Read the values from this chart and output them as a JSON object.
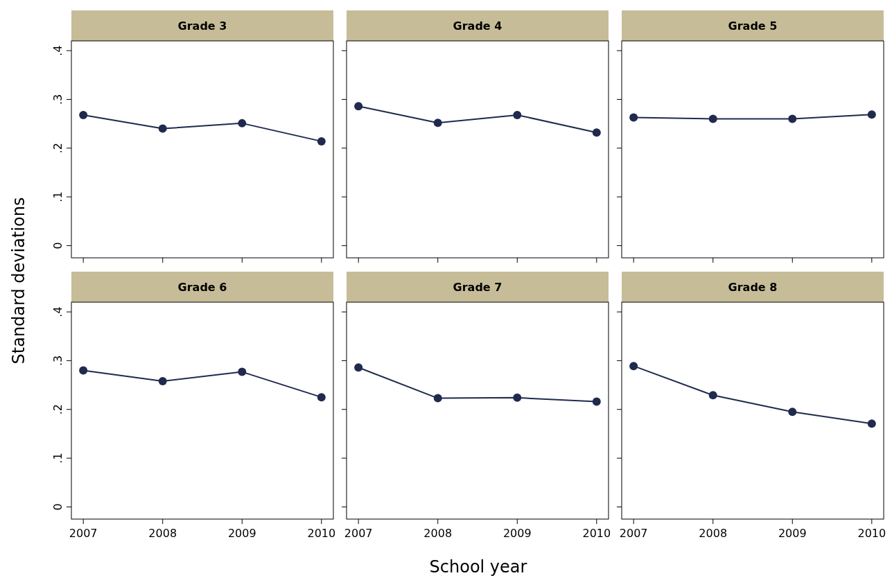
{
  "chart_data": [
    {
      "type": "line",
      "title": "Grade 3",
      "ylabel": "Standard deviations",
      "x": [
        2007,
        2008,
        2009,
        2010
      ],
      "series": [
        {
          "color": "#1f2a4d",
          "values": [
            0.268,
            0.24,
            0.251,
            0.214
          ]
        }
      ],
      "xlim": [
        2006.85,
        2010.15
      ],
      "xticks": [
        {
          "value": 2007,
          "label": null
        },
        {
          "value": 2008,
          "label": null
        },
        {
          "value": 2009,
          "label": null
        },
        {
          "value": 2010,
          "label": null
        }
      ],
      "ylim": [
        -0.025,
        0.42
      ],
      "yticks": [
        {
          "value": 0,
          "label": "0"
        },
        {
          "value": 0.1,
          "label": ".1"
        },
        {
          "value": 0.2,
          "label": ".2"
        },
        {
          "value": 0.3,
          "label": ".3"
        },
        {
          "value": 0.4,
          "label": ".4"
        }
      ],
      "marker": "circle",
      "tick_labels": "y"
    },
    {
      "type": "line",
      "title": "Grade 4",
      "x": [
        2007,
        2008,
        2009,
        2010
      ],
      "series": [
        {
          "color": "#1f2a4d",
          "values": [
            0.286,
            0.252,
            0.268,
            0.232
          ]
        }
      ],
      "xlim": [
        2006.85,
        2010.15
      ],
      "xticks": [
        {
          "value": 2007,
          "label": null
        },
        {
          "value": 2008,
          "label": null
        },
        {
          "value": 2009,
          "label": null
        },
        {
          "value": 2010,
          "label": null
        }
      ],
      "ylim": [
        -0.025,
        0.42
      ],
      "yticks": [
        {
          "value": 0,
          "label": null
        },
        {
          "value": 0.1,
          "label": null
        },
        {
          "value": 0.2,
          "label": null
        },
        {
          "value": 0.3,
          "label": null
        },
        {
          "value": 0.4,
          "label": null
        }
      ],
      "marker": "circle",
      "tick_labels": false
    },
    {
      "type": "line",
      "title": "Grade 5",
      "x": [
        2007,
        2008,
        2009,
        2010
      ],
      "series": [
        {
          "color": "#1f2a4d",
          "values": [
            0.263,
            0.26,
            0.26,
            0.269
          ]
        }
      ],
      "xlim": [
        2006.85,
        2010.15
      ],
      "xticks": [
        {
          "value": 2007,
          "label": null
        },
        {
          "value": 2008,
          "label": null
        },
        {
          "value": 2009,
          "label": null
        },
        {
          "value": 2010,
          "label": null
        }
      ],
      "ylim": [
        -0.025,
        0.42
      ],
      "yticks": [
        {
          "value": 0,
          "label": null
        },
        {
          "value": 0.1,
          "label": null
        },
        {
          "value": 0.2,
          "label": null
        },
        {
          "value": 0.3,
          "label": null
        },
        {
          "value": 0.4,
          "label": null
        }
      ],
      "marker": "circle",
      "tick_labels": false
    },
    {
      "type": "line",
      "title": "Grade 6",
      "x": [
        2007,
        2008,
        2009,
        2010
      ],
      "series": [
        {
          "color": "#1f2a4d",
          "values": [
            0.28,
            0.258,
            0.277,
            0.225
          ]
        }
      ],
      "xlim": [
        2006.85,
        2010.15
      ],
      "xticks": [
        2007,
        2008,
        2009,
        2010
      ],
      "ylim": [
        -0.025,
        0.42
      ],
      "yticks": [
        {
          "value": 0,
          "label": "0"
        },
        {
          "value": 0.1,
          "label": ".1"
        },
        {
          "value": 0.2,
          "label": ".2"
        },
        {
          "value": 0.3,
          "label": ".3"
        },
        {
          "value": 0.4,
          "label": ".4"
        }
      ],
      "marker": "circle"
    },
    {
      "type": "line",
      "title": "Grade 7",
      "xlabel": "School year",
      "x": [
        2007,
        2008,
        2009,
        2010
      ],
      "series": [
        {
          "color": "#1f2a4d",
          "values": [
            0.286,
            0.223,
            0.224,
            0.216
          ]
        }
      ],
      "xlim": [
        2006.85,
        2010.15
      ],
      "xticks": [
        2007,
        2008,
        2009,
        2010
      ],
      "ylim": [
        -0.025,
        0.42
      ],
      "yticks": [
        {
          "value": 0,
          "label": null
        },
        {
          "value": 0.1,
          "label": null
        },
        {
          "value": 0.2,
          "label": null
        },
        {
          "value": 0.3,
          "label": null
        },
        {
          "value": 0.4,
          "label": null
        }
      ],
      "marker": "circle",
      "tick_labels": "x"
    },
    {
      "type": "line",
      "title": "Grade 8",
      "x": [
        2007,
        2008,
        2009,
        2010
      ],
      "series": [
        {
          "color": "#1f2a4d",
          "values": [
            0.289,
            0.229,
            0.195,
            0.171
          ]
        }
      ],
      "xlim": [
        2006.85,
        2010.15
      ],
      "xticks": [
        2007,
        2008,
        2009,
        2010
      ],
      "ylim": [
        -0.025,
        0.42
      ],
      "yticks": [
        {
          "value": 0,
          "label": null
        },
        {
          "value": 0.1,
          "label": null
        },
        {
          "value": 0.2,
          "label": null
        },
        {
          "value": 0.3,
          "label": null
        },
        {
          "value": 0.4,
          "label": null
        }
      ],
      "marker": "circle",
      "tick_labels": "x"
    }
  ]
}
